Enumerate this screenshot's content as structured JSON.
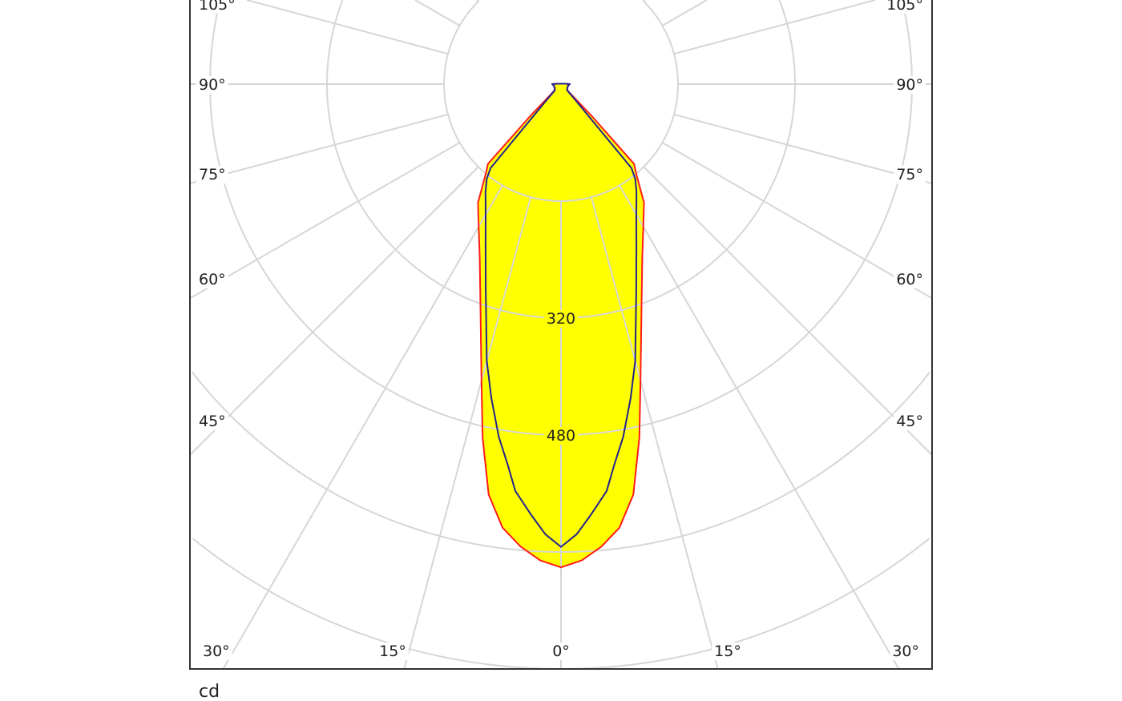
{
  "chart_data": {
    "type": "polar",
    "unit_label": "cd",
    "radial_unit": "cd",
    "radial_max": 800,
    "ring_step": 160,
    "ring_labels": [
      "320",
      "480"
    ],
    "ring_label_values": [
      320,
      480
    ],
    "angle_step_deg": 15,
    "angle_labels_left": [
      "105°",
      "90°",
      "75°",
      "60°",
      "45°",
      "30°"
    ],
    "angle_labels_bottom": [
      "15°",
      "0°",
      "15°"
    ],
    "angle_labels_right": [
      "105°",
      "90°",
      "75°",
      "60°",
      "45°",
      "30°"
    ],
    "grid": true,
    "fill_color": "#ffff00",
    "series": [
      {
        "color": "#ff1a1a",
        "angles_deg": [
          0,
          2.5,
          5,
          7.5,
          10,
          12.5,
          15,
          20,
          25,
          30,
          35,
          40,
          42.5,
          44,
          45,
          50,
          60,
          70,
          80,
          85,
          90,
          95
        ],
        "values_cd": [
          661,
          652,
          635,
          612,
          570,
          495,
          420,
          322,
          263,
          225,
          198,
          160,
          148,
          60,
          14,
          11,
          10,
          10,
          10,
          11,
          12,
          6
        ]
      },
      {
        "color": "#23238f",
        "angles_deg": [
          0,
          2,
          4,
          6.4,
          8,
          10,
          12.5,
          15,
          20,
          25,
          30,
          35,
          38,
          40,
          42,
          45,
          50,
          60,
          70,
          80,
          85,
          90,
          95
        ],
        "values_cd": [
          633,
          616,
          590,
          560,
          525,
          490,
          440,
          392,
          301,
          244,
          206,
          180,
          165,
          150,
          30,
          12,
          11,
          10,
          10,
          10,
          11,
          12,
          6
        ]
      }
    ]
  }
}
